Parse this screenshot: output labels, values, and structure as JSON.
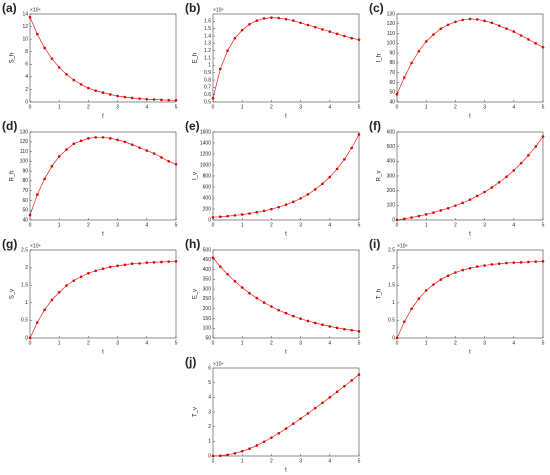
{
  "chart_data": [
    {
      "type": "line",
      "title": "(a)",
      "multiplier": "×10⁴",
      "xlabel": "t",
      "ylabel": "S_h",
      "color": "#e00000",
      "x": [
        0,
        0.25,
        0.5,
        0.75,
        1,
        1.25,
        1.5,
        1.75,
        2,
        2.25,
        2.5,
        2.75,
        3,
        3.25,
        3.5,
        3.75,
        4,
        4.25,
        4.5,
        4.75,
        5
      ],
      "values": [
        13.5,
        10.8,
        8.6,
        6.9,
        5.5,
        4.4,
        3.5,
        2.8,
        2.2,
        1.8,
        1.5,
        1.2,
        0.95,
        0.78,
        0.64,
        0.53,
        0.45,
        0.39,
        0.34,
        0.3,
        0.27
      ],
      "xlim": [
        0,
        5
      ],
      "xticks": [
        0,
        1,
        2,
        3,
        4,
        5
      ],
      "ylim": [
        0,
        14
      ],
      "yticks": [
        0,
        2,
        4,
        6,
        8,
        10,
        12,
        14
      ]
    },
    {
      "type": "line",
      "title": "(b)",
      "multiplier": "×10⁴",
      "xlabel": "t",
      "ylabel": "E_h",
      "color": "#e00000",
      "x": [
        0,
        0.25,
        0.5,
        0.75,
        1,
        1.25,
        1.5,
        1.75,
        2,
        2.25,
        2.5,
        2.75,
        3,
        3.25,
        3.5,
        3.75,
        4,
        4.25,
        4.5,
        4.75,
        5
      ],
      "values": [
        0.55,
        0.95,
        1.2,
        1.37,
        1.48,
        1.56,
        1.61,
        1.64,
        1.65,
        1.645,
        1.63,
        1.61,
        1.58,
        1.55,
        1.52,
        1.49,
        1.46,
        1.43,
        1.4,
        1.37,
        1.35
      ],
      "xlim": [
        0,
        5
      ],
      "xticks": [
        0,
        1,
        2,
        3,
        4,
        5
      ],
      "ylim": [
        0.5,
        1.7
      ],
      "yticks": [
        0.5,
        0.6,
        0.7,
        0.8,
        0.9,
        1,
        1.1,
        1.2,
        1.3,
        1.4,
        1.5,
        1.6
      ]
    },
    {
      "type": "line",
      "title": "(c)",
      "xlabel": "t",
      "ylabel": "I_h",
      "color": "#e00000",
      "x": [
        0,
        0.25,
        0.5,
        0.75,
        1,
        1.25,
        1.5,
        1.75,
        2,
        2.25,
        2.5,
        2.75,
        3,
        3.25,
        3.5,
        3.75,
        4,
        4.25,
        4.5,
        4.75,
        5
      ],
      "values": [
        48,
        65,
        80,
        92,
        102,
        109,
        115,
        119,
        122,
        124,
        125,
        124.5,
        123,
        121,
        118,
        115,
        112,
        108,
        104,
        100,
        96
      ],
      "xlim": [
        0,
        5
      ],
      "xticks": [
        0,
        1,
        2,
        3,
        4,
        5
      ],
      "ylim": [
        40,
        130
      ],
      "yticks": [
        40,
        50,
        60,
        70,
        80,
        90,
        100,
        110,
        120,
        130
      ]
    },
    {
      "type": "line",
      "title": "(d)",
      "xlabel": "t",
      "ylabel": "R_h",
      "color": "#e00000",
      "x": [
        0,
        0.25,
        0.5,
        0.75,
        1,
        1.25,
        1.5,
        1.75,
        2,
        2.25,
        2.5,
        2.75,
        3,
        3.25,
        3.5,
        3.75,
        4,
        4.25,
        4.5,
        4.75,
        5
      ],
      "values": [
        45,
        66,
        82,
        95,
        105,
        112,
        118,
        121,
        123.5,
        124.5,
        124.5,
        123.5,
        122,
        120,
        117,
        114,
        111,
        108,
        104,
        100,
        97
      ],
      "xlim": [
        0,
        5
      ],
      "xticks": [
        0,
        1,
        2,
        3,
        4,
        5
      ],
      "ylim": [
        40,
        130
      ],
      "yticks": [
        40,
        50,
        60,
        70,
        80,
        90,
        100,
        110,
        120,
        130
      ]
    },
    {
      "type": "line",
      "title": "(e)",
      "xlabel": "t",
      "ylabel": "I_v",
      "color": "#e00000",
      "x": [
        0,
        0.25,
        0.5,
        0.75,
        1,
        1.25,
        1.5,
        1.75,
        2,
        2.25,
        2.5,
        2.75,
        3,
        3.25,
        3.5,
        3.75,
        4,
        4.25,
        4.5,
        4.75,
        5
      ],
      "values": [
        50,
        59,
        70,
        84,
        99,
        118,
        140,
        166,
        197,
        234,
        279,
        331,
        393,
        467,
        555,
        659,
        782,
        929,
        1104,
        1311,
        1557
      ],
      "xlim": [
        0,
        5
      ],
      "xticks": [
        0,
        1,
        2,
        3,
        4,
        5
      ],
      "ylim": [
        0,
        1600
      ],
      "yticks": [
        0,
        200,
        400,
        600,
        800,
        1000,
        1200,
        1400,
        1600
      ]
    },
    {
      "type": "line",
      "title": "(f)",
      "xlabel": "t",
      "ylabel": "R_v",
      "color": "#e00000",
      "x": [
        0,
        0.25,
        0.5,
        0.75,
        1,
        1.25,
        1.5,
        1.75,
        2,
        2.25,
        2.5,
        2.75,
        3,
        3.25,
        3.5,
        3.75,
        4,
        4.25,
        4.5,
        4.75,
        5
      ],
      "values": [
        0,
        8,
        17,
        27,
        38,
        51,
        65,
        80,
        98,
        117,
        139,
        164,
        191,
        222,
        257,
        295,
        338,
        387,
        441,
        501,
        569
      ],
      "xlim": [
        0,
        5
      ],
      "xticks": [
        0,
        1,
        2,
        3,
        4,
        5
      ],
      "ylim": [
        0,
        600
      ],
      "yticks": [
        0,
        100,
        200,
        300,
        400,
        500,
        600
      ]
    },
    {
      "type": "line",
      "title": "(g)",
      "multiplier": "×10⁴",
      "xlabel": "t",
      "ylabel": "S_v",
      "color": "#e00000",
      "x": [
        0,
        0.25,
        0.5,
        0.75,
        1,
        1.25,
        1.5,
        1.75,
        2,
        2.25,
        2.5,
        2.75,
        3,
        3.25,
        3.5,
        3.75,
        4,
        4.25,
        4.5,
        4.75,
        5
      ],
      "values": [
        0,
        0.44,
        0.8,
        1.08,
        1.3,
        1.49,
        1.63,
        1.74,
        1.84,
        1.91,
        1.97,
        2.02,
        2.05,
        2.08,
        2.11,
        2.12,
        2.14,
        2.15,
        2.16,
        2.17,
        2.18
      ],
      "xlim": [
        0,
        5
      ],
      "xticks": [
        0,
        1,
        2,
        3,
        4,
        5
      ],
      "ylim": [
        0,
        2.5
      ],
      "yticks": [
        0,
        0.5,
        1,
        1.5,
        2,
        2.5
      ]
    },
    {
      "type": "line",
      "title": "(h)",
      "xlabel": "t",
      "ylabel": "E_v",
      "color": "#e00000",
      "x": [
        0,
        0.25,
        0.5,
        0.75,
        1,
        1.25,
        1.5,
        1.75,
        2,
        2.25,
        2.5,
        2.75,
        3,
        3.25,
        3.5,
        3.75,
        4,
        4.25,
        4.5,
        4.75,
        5
      ],
      "values": [
        460,
        415,
        376,
        340,
        308,
        279,
        254,
        231,
        211,
        192,
        177,
        162,
        149,
        137,
        127,
        118,
        109,
        102,
        95,
        90,
        84
      ],
      "xlim": [
        0,
        5
      ],
      "xticks": [
        0,
        1,
        2,
        3,
        4,
        5
      ],
      "ylim": [
        50,
        500
      ],
      "yticks": [
        50,
        100,
        150,
        200,
        250,
        300,
        350,
        400,
        450,
        500
      ]
    },
    {
      "type": "line",
      "title": "(i)",
      "multiplier": "×10⁴",
      "xlabel": "t",
      "ylabel": "T_h",
      "color": "#e00000",
      "x": [
        0,
        0.25,
        0.5,
        0.75,
        1,
        1.25,
        1.5,
        1.75,
        2,
        2.25,
        2.5,
        2.75,
        3,
        3.25,
        3.5,
        3.75,
        4,
        4.25,
        4.5,
        4.75,
        5
      ],
      "values": [
        0,
        0.46,
        0.83,
        1.12,
        1.35,
        1.52,
        1.66,
        1.77,
        1.86,
        1.93,
        1.98,
        2.03,
        2.06,
        2.09,
        2.11,
        2.13,
        2.14,
        2.15,
        2.16,
        2.17,
        2.18
      ],
      "xlim": [
        0,
        5
      ],
      "xticks": [
        0,
        1,
        2,
        3,
        4,
        5
      ],
      "ylim": [
        0,
        2.5
      ],
      "yticks": [
        0,
        0.5,
        1,
        1.5,
        2,
        2.5
      ]
    },
    {
      "type": "line",
      "title": "(j)",
      "multiplier": "×10⁴",
      "xlabel": "t",
      "ylabel": "T_v",
      "color": "#e00000",
      "x": [
        0,
        0.25,
        0.5,
        0.75,
        1,
        1.25,
        1.5,
        1.75,
        2,
        2.25,
        2.5,
        2.75,
        3,
        3.25,
        3.5,
        3.75,
        4,
        4.25,
        4.5,
        4.75,
        5
      ],
      "values": [
        0,
        0.02,
        0.08,
        0.18,
        0.32,
        0.5,
        0.72,
        0.97,
        1.25,
        1.55,
        1.87,
        2.2,
        2.55,
        2.9,
        3.26,
        3.63,
        4,
        4.38,
        4.76,
        5.15,
        5.55
      ],
      "xlim": [
        0,
        5
      ],
      "xticks": [
        0,
        1,
        2,
        3,
        4,
        5
      ],
      "ylim": [
        0,
        6
      ],
      "yticks": [
        0,
        1,
        2,
        3,
        4,
        5,
        6
      ]
    }
  ]
}
